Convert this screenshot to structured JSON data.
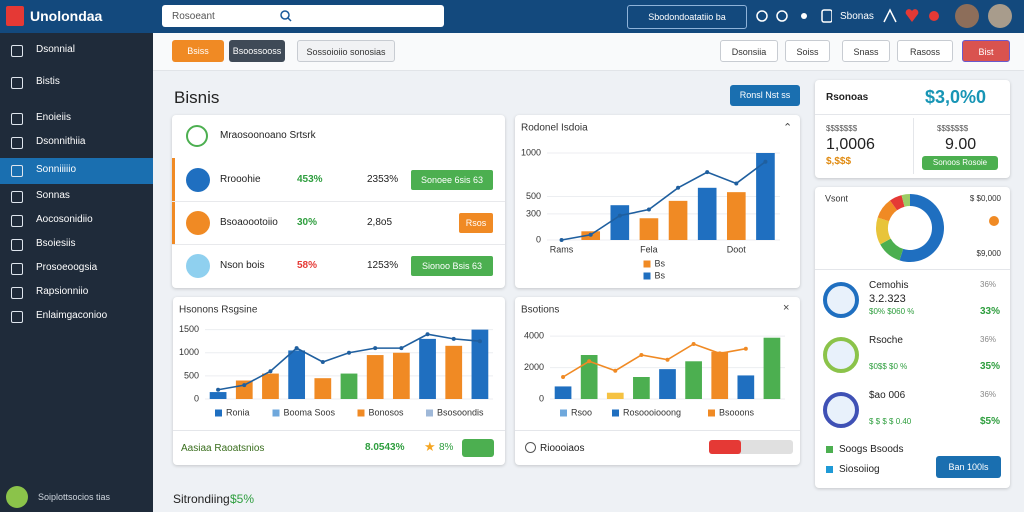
{
  "app": {
    "name": "Unolondaa"
  },
  "search": {
    "placeholder": "Rosoeant"
  },
  "topbar": {
    "button": "Sbodondoatatiio ba",
    "label": "Sbonas"
  },
  "sidebar": {
    "items": [
      "Dsonnial",
      "Bistis",
      "Enoieiis",
      "Dsonnithiia",
      "Sonniiiiio",
      "Sonnas",
      "Aocosonidiio",
      "Bsoiesiis",
      "Prosoeoogsia",
      "Rapsionniio",
      "Enlaimgaconioo"
    ],
    "active": 4,
    "footer": "Soiplottsocios tias"
  },
  "toolbar": {
    "left": [
      "Bsiss",
      "Bsoossooss",
      "Sossoioiio sonosias"
    ],
    "right": [
      "Dsonsiia",
      "Soiss",
      "Snass",
      "Rasoss",
      "Bist"
    ]
  },
  "page": {
    "title": "Bisnis",
    "action": "Ronsl Nst ss",
    "footer_label": "Sitrondiing",
    "footer_value": "$5%"
  },
  "list": {
    "header": "Mraosoonoano Srtsrk",
    "rows": [
      {
        "name": "Rrooohie",
        "pct": "453%",
        "num": "2353%",
        "action": "Sonoee 6sis 63"
      },
      {
        "name": "Bsoaoootoiio",
        "pct": "30%",
        "num": "2,8o5",
        "action": "Rsos"
      },
      {
        "name": "Nson bois",
        "pct": "58%",
        "num": "1253%",
        "action": "Sionoo Bsis 63"
      }
    ]
  },
  "summary": {
    "title": "Rsonoas",
    "big": "$3,0%0",
    "left_label": "$$$$$$$",
    "left_value": "1,0006",
    "left_sub": "$,$$$",
    "right_label": "$$$$$$$",
    "right_value": "9.00",
    "right_button": "Sonoos Rosoie"
  },
  "people": [
    {
      "name": "Cemohis",
      "value": "3.2.323",
      "sub": "$0% $060 %",
      "pct1": "36%",
      "pct2": "33%"
    },
    {
      "name": "Rsoche",
      "value": "",
      "sub": "$0$$ $0 %",
      "pct1": "36%",
      "pct2": "35%"
    },
    {
      "name": "$ao 006",
      "value": "",
      "sub": "$ $ $ $ 0.40",
      "pct1": "36%",
      "pct2": "$5%"
    }
  ],
  "people_legend": [
    "Soogs Bsoods",
    "Siosoiiog"
  ],
  "people_button": "Ban 100ls",
  "card_footers": {
    "left_label": "Aasiaa Raoatsnios",
    "left_value": "8.0543%",
    "left_star": "8%",
    "right_label": "Rioooiaos"
  },
  "chart_data": [
    {
      "type": "bar",
      "title": "Rodonel Isdoia",
      "categories": [
        "Rams",
        null,
        null,
        "Fela",
        null,
        null,
        "Doot",
        null
      ],
      "series": [
        {
          "name": "Bs",
          "type": "bar",
          "values": [
            null,
            100,
            400,
            250,
            450,
            600,
            550,
            1000
          ],
          "colors": [
            "#f08a24",
            "#f08a24",
            "#1f6fc0",
            "#f08a24",
            "#f08a24",
            "#1f6fc0",
            "#f08a24",
            "#1f6fc0"
          ]
        },
        {
          "name": "Bs",
          "type": "line",
          "color": "#1f5f9f",
          "values": [
            0,
            60,
            280,
            350,
            600,
            780,
            650,
            900
          ]
        }
      ],
      "legend": [
        {
          "name": "Bs",
          "color": "#f08a24"
        },
        {
          "name": "Bs",
          "color": "#1f6fc0"
        }
      ],
      "ylim": [
        0,
        1000
      ],
      "yticks": [
        0,
        300,
        500,
        1000
      ]
    },
    {
      "type": "bar",
      "title": "Hsonons Rsgsine",
      "categories": [
        null,
        null,
        null,
        null,
        null,
        null,
        null,
        null,
        null,
        null,
        null
      ],
      "series": [
        {
          "name": "Ronia",
          "type": "bar",
          "values": [
            150,
            400,
            550,
            1050,
            450,
            550,
            950,
            1000,
            1300,
            1150,
            1500
          ],
          "colors": [
            "#1f6fc0",
            "#f08a24",
            "#f08a24",
            "#1f6fc0",
            "#f08a24",
            "#4caf50",
            "#f08a24",
            "#f08a24",
            "#1f6fc0",
            "#f08a24",
            "#1f6fc0"
          ]
        },
        {
          "name": "Booma Soos",
          "type": "line",
          "color": "#1f5f9f",
          "values": [
            200,
            300,
            600,
            1100,
            800,
            1000,
            1100,
            1100,
            1400,
            1300,
            1250
          ]
        }
      ],
      "legend": [
        {
          "name": "Ronia",
          "color": "#1f6fc0"
        },
        {
          "name": "Booma Soos",
          "color": "#6fa8dc"
        },
        {
          "name": "Bonosos",
          "color": "#f08a24"
        },
        {
          "name": "Bsosoondis",
          "color": "#9fb8d8"
        }
      ],
      "ylim": [
        0,
        1600
      ],
      "yticks": [
        0,
        500,
        1000,
        1500
      ]
    },
    {
      "type": "bar",
      "title": "Bsotions",
      "categories": [
        null,
        null,
        null,
        null,
        null,
        null,
        null,
        null,
        null
      ],
      "series": [
        {
          "name": "Rsoo",
          "type": "bar",
          "values": [
            800,
            2800,
            400,
            1400,
            1900,
            2400,
            3000,
            1500,
            3900
          ],
          "colors": [
            "#1f6fc0",
            "#4caf50",
            "#f5c242",
            "#4caf50",
            "#1f6fc0",
            "#4caf50",
            "#f08a24",
            "#1f6fc0",
            "#4caf50"
          ]
        },
        {
          "name": "Bsooons",
          "type": "line",
          "color": "#f08a24",
          "values": [
            1400,
            2400,
            1800,
            2800,
            2500,
            3500,
            2900,
            3200,
            null
          ]
        }
      ],
      "legend": [
        {
          "name": "Rsoo",
          "color": "#6fa8dc"
        },
        {
          "name": "Rosoooiooong",
          "color": "#1f6fc0"
        },
        {
          "name": "Bsooons",
          "color": "#f08a24"
        }
      ],
      "ylim": [
        0,
        4200
      ],
      "yticks": [
        0,
        2000,
        4000
      ]
    },
    {
      "type": "pie",
      "title": "Vsont",
      "values": [
        55,
        12,
        13,
        10,
        6,
        4
      ],
      "colors": [
        "#1f6fc0",
        "#4caf50",
        "#e8c43a",
        "#f08a24",
        "#e53935",
        "#9ccc65"
      ],
      "annotations": [
        "$ $0,000",
        "$9,000"
      ]
    }
  ]
}
